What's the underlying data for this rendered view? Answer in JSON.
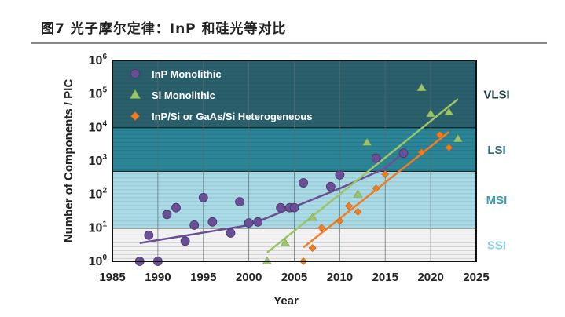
{
  "figure": {
    "title": "图7  光子摩尔定律：InP 和硅光等对比"
  },
  "chart_data": {
    "type": "scatter",
    "title": "",
    "xlabel": "Year",
    "ylabel": "Number of Components / PIC",
    "xlim": [
      1985,
      2025
    ],
    "ylim": [
      1,
      1000000
    ],
    "yscale": "log",
    "x_ticks": [
      "1985",
      "1990",
      "1995",
      "2000",
      "2005",
      "2010",
      "2015",
      "2020",
      "2025"
    ],
    "x_tick_values": [
      1985,
      1990,
      1995,
      2000,
      2005,
      2010,
      2015,
      2020,
      2025
    ],
    "y_ticks": [
      {
        "base": "10",
        "exp": "0",
        "value": 1
      },
      {
        "base": "10",
        "exp": "1",
        "value": 10
      },
      {
        "base": "10",
        "exp": "2",
        "value": 100
      },
      {
        "base": "10",
        "exp": "3",
        "value": 1000
      },
      {
        "base": "10",
        "exp": "4",
        "value": 10000
      },
      {
        "base": "10",
        "exp": "5",
        "value": 100000
      },
      {
        "base": "10",
        "exp": "6",
        "value": 1000000
      }
    ],
    "grid": true,
    "legend_position": "top-left",
    "bands": [
      {
        "label": "SSI",
        "from": 1,
        "to": 10,
        "color": "#f2f2f2",
        "stripe": "#b8b8b8",
        "label_color": "#8ecfdc"
      },
      {
        "label": "MSI",
        "from": 10,
        "to": 500,
        "color": "#a9dbe6",
        "stripe": "#8fb5bd",
        "label_color": "#3a9bb0"
      },
      {
        "label": "LSI",
        "from": 500,
        "to": 10000,
        "color": "#2b8597",
        "stripe": "#256f7e",
        "label_color": "#2e6a78"
      },
      {
        "label": "VLSI",
        "from": 10000,
        "to": 1000000,
        "color": "#2a5f6c",
        "stripe": "#24525d",
        "label_color": "#1f3f48"
      }
    ],
    "series": [
      {
        "name": "InP Monolithic",
        "marker": "circle",
        "color": "#6b4f96",
        "line_color": "#6b4f96",
        "points": [
          [
            1988,
            1
          ],
          [
            1990,
            1
          ],
          [
            1989,
            6
          ],
          [
            1991,
            25
          ],
          [
            1992,
            40
          ],
          [
            1993,
            4
          ],
          [
            1994,
            12
          ],
          [
            1995,
            80
          ],
          [
            1996,
            15
          ],
          [
            1998,
            7
          ],
          [
            1999,
            60
          ],
          [
            2000,
            14
          ],
          [
            2001,
            15
          ],
          [
            2003.5,
            40
          ],
          [
            2004.5,
            40
          ],
          [
            2005,
            40
          ],
          [
            2006,
            220
          ],
          [
            2009,
            170
          ],
          [
            2010,
            380
          ],
          [
            2014,
            1200
          ],
          [
            2017,
            1700
          ]
        ],
        "trend": [
          [
            1988,
            3.5
          ],
          [
            2000,
            12
          ],
          [
            2010,
            150
          ],
          [
            2015,
            600
          ],
          [
            2017,
            1800
          ]
        ]
      },
      {
        "name": "Si Monolithic",
        "marker": "triangle",
        "color": "#9cc46a",
        "line_color": "#9cc46a",
        "points": [
          [
            2002,
            1
          ],
          [
            2004,
            3.5
          ],
          [
            2007,
            20
          ],
          [
            2012,
            100
          ],
          [
            2013,
            3500
          ],
          [
            2019,
            150000
          ],
          [
            2020,
            25000
          ],
          [
            2022,
            28000
          ],
          [
            2023,
            4500
          ]
        ],
        "trend": [
          [
            2002,
            1.8
          ],
          [
            2023,
            70000
          ]
        ]
      },
      {
        "name": "InP/Si or GaAs/Si Heterogeneous",
        "marker": "diamond",
        "color": "#f07d22",
        "line_color": "#f07d22",
        "points": [
          [
            2006,
            1
          ],
          [
            2007,
            2.5
          ],
          [
            2008,
            10
          ],
          [
            2010,
            16
          ],
          [
            2011,
            45
          ],
          [
            2012,
            30
          ],
          [
            2014,
            150
          ],
          [
            2015,
            400
          ],
          [
            2019,
            1800
          ],
          [
            2021,
            6000
          ],
          [
            2022,
            2500
          ]
        ],
        "trend": [
          [
            2006,
            2.6
          ],
          [
            2022,
            7300
          ]
        ]
      }
    ]
  }
}
